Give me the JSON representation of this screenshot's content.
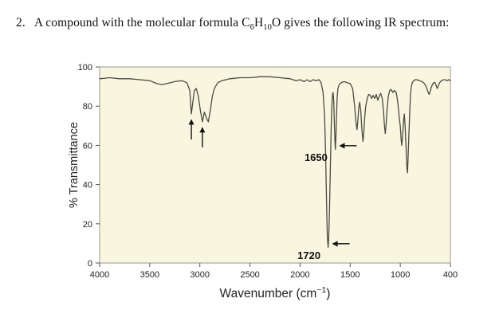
{
  "question": {
    "number": "2.",
    "pre": "A compound with the molecular formula C",
    "sub1": "6",
    "mid": "H",
    "sub2": "10",
    "post": "O gives the following IR spectrum:"
  },
  "chart_data": {
    "type": "line",
    "title": "",
    "ylabel": "% Transmittance",
    "xlabel_parts": {
      "pre": "Wavenumber (cm",
      "sup": "−1",
      "post": ")"
    },
    "xlim": [
      4000,
      400
    ],
    "ylim": [
      0,
      100
    ],
    "x_ticks": [
      4000,
      3500,
      3000,
      2500,
      2000,
      1500,
      1000,
      400
    ],
    "y_ticks": [
      100,
      80,
      60,
      40,
      20,
      0
    ],
    "grid": false,
    "legend": "none",
    "colors": {
      "panel_background": "#f9f6df",
      "frame": "#9a9a8c",
      "line": "#4b4b43",
      "tick": "#555555",
      "annotation": "#111111"
    },
    "series": [
      {
        "name": "IR spectrum of C6H10O",
        "points": [
          [
            4000,
            94
          ],
          [
            3900,
            94.5
          ],
          [
            3800,
            94
          ],
          [
            3700,
            94
          ],
          [
            3600,
            93.5
          ],
          [
            3500,
            93
          ],
          [
            3430,
            91.5
          ],
          [
            3380,
            91
          ],
          [
            3330,
            91.5
          ],
          [
            3250,
            92.5
          ],
          [
            3180,
            93
          ],
          [
            3130,
            92
          ],
          [
            3100,
            88
          ],
          [
            3085,
            76
          ],
          [
            3070,
            82
          ],
          [
            3055,
            88
          ],
          [
            3035,
            89
          ],
          [
            3015,
            85
          ],
          [
            2995,
            78
          ],
          [
            2975,
            72
          ],
          [
            2955,
            77
          ],
          [
            2935,
            74
          ],
          [
            2915,
            72
          ],
          [
            2895,
            78
          ],
          [
            2875,
            85
          ],
          [
            2855,
            89
          ],
          [
            2820,
            92
          ],
          [
            2780,
            93
          ],
          [
            2700,
            94
          ],
          [
            2600,
            94.5
          ],
          [
            2500,
            94.5
          ],
          [
            2400,
            95
          ],
          [
            2300,
            95
          ],
          [
            2200,
            94.5
          ],
          [
            2100,
            94
          ],
          [
            2040,
            93
          ],
          [
            2000,
            93.5
          ],
          [
            1960,
            92.5
          ],
          [
            1930,
            93.5
          ],
          [
            1900,
            92.5
          ],
          [
            1870,
            93.5
          ],
          [
            1840,
            93
          ],
          [
            1810,
            93.5
          ],
          [
            1790,
            92
          ],
          [
            1770,
            87
          ],
          [
            1755,
            75
          ],
          [
            1745,
            55
          ],
          [
            1735,
            30
          ],
          [
            1728,
            14
          ],
          [
            1720,
            8
          ],
          [
            1714,
            13
          ],
          [
            1706,
            28
          ],
          [
            1698,
            48
          ],
          [
            1690,
            68
          ],
          [
            1683,
            80
          ],
          [
            1676,
            86
          ],
          [
            1670,
            87
          ],
          [
            1664,
            82
          ],
          [
            1658,
            72
          ],
          [
            1652,
            62
          ],
          [
            1648,
            58
          ],
          [
            1643,
            63
          ],
          [
            1637,
            74
          ],
          [
            1630,
            84
          ],
          [
            1622,
            89
          ],
          [
            1610,
            91
          ],
          [
            1590,
            92
          ],
          [
            1560,
            92.5
          ],
          [
            1530,
            92
          ],
          [
            1500,
            91.5
          ],
          [
            1475,
            89
          ],
          [
            1455,
            80
          ],
          [
            1443,
            72
          ],
          [
            1432,
            68
          ],
          [
            1424,
            72
          ],
          [
            1415,
            79
          ],
          [
            1405,
            82
          ],
          [
            1395,
            78
          ],
          [
            1383,
            68
          ],
          [
            1373,
            62
          ],
          [
            1365,
            66
          ],
          [
            1355,
            74
          ],
          [
            1345,
            80
          ],
          [
            1330,
            84
          ],
          [
            1315,
            86
          ],
          [
            1300,
            85.5
          ],
          [
            1285,
            84
          ],
          [
            1270,
            85.5
          ],
          [
            1255,
            84
          ],
          [
            1240,
            86
          ],
          [
            1225,
            83
          ],
          [
            1210,
            85
          ],
          [
            1195,
            86.5
          ],
          [
            1180,
            84
          ],
          [
            1168,
            78
          ],
          [
            1158,
            70
          ],
          [
            1150,
            66
          ],
          [
            1142,
            70
          ],
          [
            1132,
            78
          ],
          [
            1120,
            85
          ],
          [
            1105,
            88
          ],
          [
            1090,
            88.5
          ],
          [
            1075,
            87
          ],
          [
            1060,
            88
          ],
          [
            1040,
            87
          ],
          [
            1025,
            82
          ],
          [
            1010,
            74
          ],
          [
            1000,
            70
          ],
          [
            990,
            63
          ],
          [
            982,
            60
          ],
          [
            974,
            64
          ],
          [
            962,
            72
          ],
          [
            952,
            76
          ],
          [
            942,
            70
          ],
          [
            930,
            58
          ],
          [
            920,
            48
          ],
          [
            914,
            46
          ],
          [
            908,
            52
          ],
          [
            898,
            64
          ],
          [
            888,
            76
          ],
          [
            878,
            86
          ],
          [
            868,
            90
          ],
          [
            855,
            92
          ],
          [
            840,
            93
          ],
          [
            820,
            93.5
          ],
          [
            800,
            93.5
          ],
          [
            770,
            93
          ],
          [
            740,
            92.5
          ],
          [
            710,
            91.5
          ],
          [
            690,
            90
          ],
          [
            670,
            87.5
          ],
          [
            655,
            86
          ],
          [
            645,
            87
          ],
          [
            630,
            89.5
          ],
          [
            615,
            91
          ],
          [
            600,
            92
          ],
          [
            585,
            92
          ],
          [
            570,
            90.5
          ],
          [
            558,
            89
          ],
          [
            548,
            90
          ],
          [
            535,
            91.5
          ],
          [
            520,
            92.5
          ],
          [
            505,
            93
          ],
          [
            480,
            93.5
          ],
          [
            460,
            93.5
          ],
          [
            440,
            93
          ],
          [
            420,
            93.5
          ],
          [
            400,
            93
          ]
        ]
      }
    ],
    "annotations": [
      {
        "type": "h-arrow",
        "label": "1720",
        "wn": 1720,
        "t": 9
      },
      {
        "type": "h-arrow",
        "label": "1650",
        "wn": 1650,
        "t": 59
      },
      {
        "type": "v-arrow",
        "label": "",
        "wn": 3085,
        "t_tip": 73,
        "t_tail": 63
      },
      {
        "type": "v-arrow",
        "label": "",
        "wn": 2975,
        "t_tip": 69,
        "t_tail": 59
      }
    ]
  }
}
